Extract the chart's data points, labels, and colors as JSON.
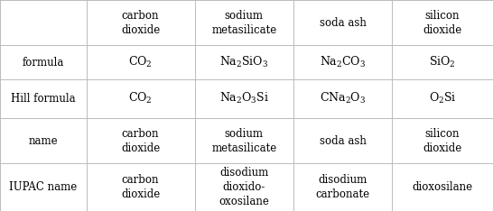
{
  "col_headers": [
    "carbon\ndioxide",
    "sodium\nmetasilicate",
    "soda ash",
    "silicon\ndioxide"
  ],
  "row_headers": [
    "formula",
    "Hill formula",
    "name",
    "IUPAC name"
  ],
  "formula_row": [
    "$\\mathregular{CO_2}$",
    "$\\mathregular{Na_2SiO_3}$",
    "$\\mathregular{Na_2CO_3}$",
    "$\\mathregular{SiO_2}$"
  ],
  "hill_row": [
    "$\\mathregular{CO_2}$",
    "$\\mathregular{Na_2O_3Si}$",
    "$\\mathregular{CNa_2O_3}$",
    "$\\mathregular{O_2Si}$"
  ],
  "name_row": [
    "carbon\ndioxide",
    "sodium\nmetasilicate",
    "soda ash",
    "silicon\ndioxide"
  ],
  "iupac_row": [
    "carbon\ndioxide",
    "disodium\ndioxido-\noxosilane",
    "disodium\ncarbonate",
    "dioxosilane"
  ],
  "background_color": "#ffffff",
  "grid_color": "#bbbbbb",
  "text_color": "#000000",
  "font_size": 8.5,
  "col_bounds": [
    0.0,
    0.175,
    0.395,
    0.595,
    0.795,
    1.0
  ],
  "row_tops": [
    1.0,
    0.785,
    0.625,
    0.44,
    0.225,
    0.0
  ]
}
